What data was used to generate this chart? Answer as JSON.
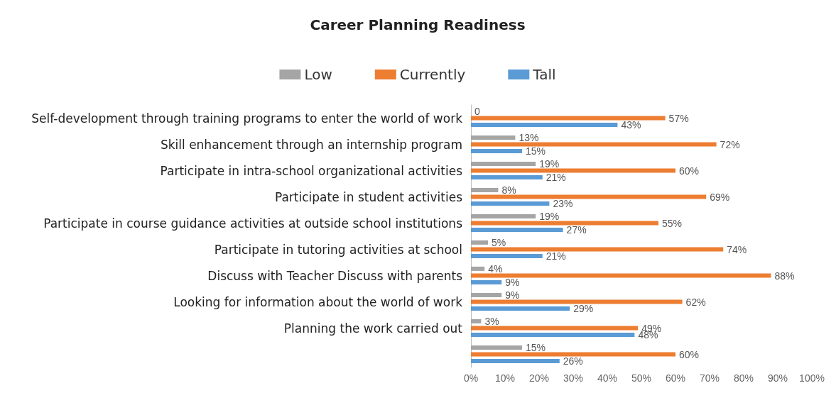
{
  "chart_data": {
    "type": "bar",
    "orientation": "horizontal",
    "title": "Career Planning Readiness",
    "categories": [
      "Self-development through training programs to enter the world of work",
      "Skill enhancement through an internship program",
      "Participate in intra-school organizational activities",
      "Participate in student activities",
      "Participate in course guidance activities at outside school institutions",
      "Participate in tutoring activities at school",
      "Discuss with Teacher Discuss with parents",
      "Looking for information about the world of work",
      "Planning the work carried out",
      null
    ],
    "series": [
      {
        "name": "Low",
        "color": "#a5a5a5",
        "values": [
          0,
          13,
          19,
          8,
          19,
          5,
          4,
          9,
          3,
          15
        ],
        "value_labels": [
          "0",
          "13%",
          "19%",
          "8%",
          "19%",
          "5%",
          "4%",
          "9%",
          "3%",
          "15%"
        ]
      },
      {
        "name": "Currently",
        "color": "#ed7d31",
        "values": [
          57,
          72,
          60,
          69,
          55,
          74,
          88,
          62,
          49,
          60
        ],
        "value_labels": [
          "57%",
          "72%",
          "60%",
          "69%",
          "55%",
          "74%",
          "88%",
          "62%",
          "49%",
          "60%"
        ]
      },
      {
        "name": "Tall",
        "color": "#5b9bd5",
        "values": [
          43,
          15,
          21,
          23,
          27,
          21,
          9,
          29,
          48,
          26
        ],
        "value_labels": [
          "43%",
          "15%",
          "21%",
          "23%",
          "27%",
          "21%",
          "9%",
          "29%",
          "48%",
          "26%"
        ]
      }
    ],
    "xlim": [
      0,
      100
    ],
    "xticks": [
      {
        "value": 0,
        "label": "0%"
      },
      {
        "value": 10,
        "label": "10%"
      },
      {
        "value": 20,
        "label": "20%"
      },
      {
        "value": 30,
        "label": "30%"
      },
      {
        "value": 40,
        "label": "40%"
      },
      {
        "value": 50,
        "label": "50%"
      },
      {
        "value": 60,
        "label": "60%"
      },
      {
        "value": 70,
        "label": "70%"
      },
      {
        "value": 80,
        "label": "80%"
      },
      {
        "value": 90,
        "label": "90%"
      },
      {
        "value": 100,
        "label": "100%"
      }
    ],
    "grid": false,
    "legend": "top"
  }
}
